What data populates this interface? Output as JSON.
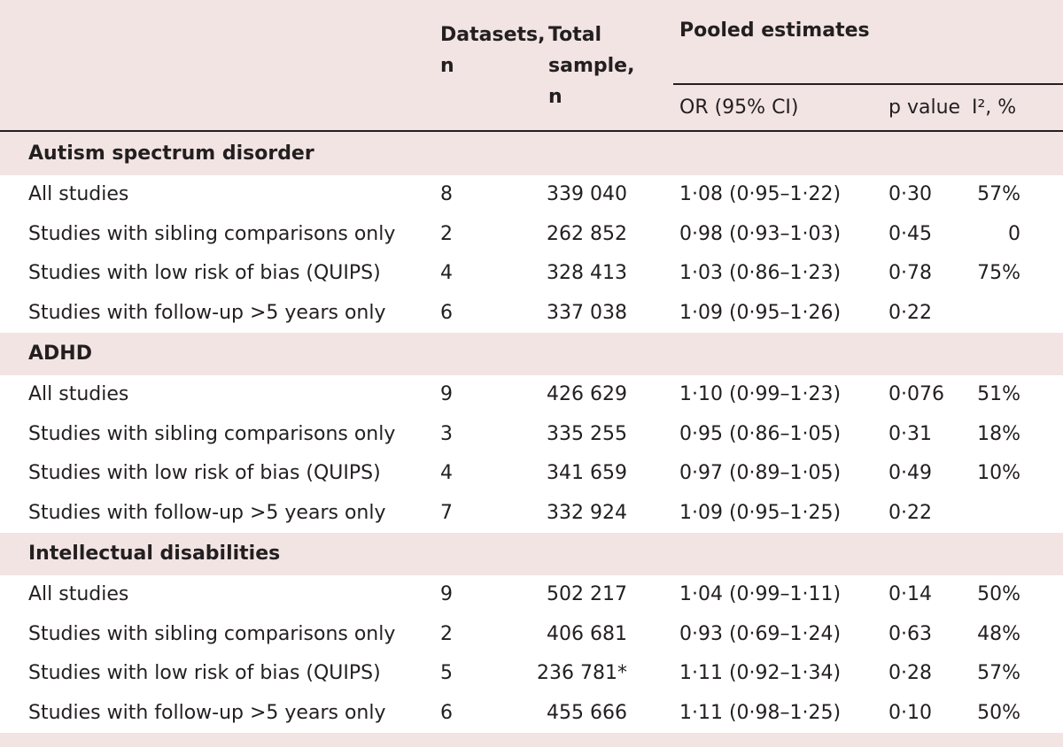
{
  "header": {
    "datasets": "Datasets, n",
    "total": "Total sample, n",
    "pooled": "Pooled estimates",
    "or": "OR (95% CI)",
    "p": "p value",
    "i2": "I², %"
  },
  "sections": [
    {
      "title": "Autism spectrum disorder",
      "rows": [
        {
          "label": "All studies",
          "n": "8",
          "total": "339 040",
          "or": "1·08 (0·95–1·22)",
          "p": "0·30",
          "i2": "57%"
        },
        {
          "label": "Studies with sibling comparisons only",
          "n": "2",
          "total": "262 852",
          "or": "0·98 (0·93–1·03)",
          "p": "0·45",
          "i2": "0"
        },
        {
          "label": "Studies with low risk of bias (QUIPS)",
          "n": "4",
          "total": "328 413",
          "or": "1·03 (0·86–1·23)",
          "p": "0·78",
          "i2": "75%"
        },
        {
          "label": "Studies with follow-up >5 years only",
          "n": "6",
          "total": "337 038",
          "or": "1·09 (0·95–1·26)",
          "p": "0·22"
        }
      ]
    },
    {
      "title": "ADHD",
      "rows": [
        {
          "label": "All studies",
          "n": "9",
          "total": "426 629",
          "or": "1·10 (0·99–1·23)",
          "p": "0·076",
          "i2": "51%"
        },
        {
          "label": "Studies with sibling comparisons only",
          "n": "3",
          "total": "335 255",
          "or": "0·95 (0·86–1·05)",
          "p": "0·31",
          "i2": "18%"
        },
        {
          "label": "Studies with low risk of bias (QUIPS)",
          "n": "4",
          "total": "341 659",
          "or": "0·97 (0·89–1·05)",
          "p": "0·49",
          "i2": "10%"
        },
        {
          "label": "Studies with follow-up >5 years only",
          "n": "7",
          "total": "332 924",
          "or": "1·09 (0·95–1·25)",
          "p": "0·22"
        }
      ]
    },
    {
      "title": "Intellectual disabilities",
      "rows": [
        {
          "label": "All studies",
          "n": "9",
          "total": "502 217",
          "or": "1·04 (0·99–1·11)",
          "p": "0·14",
          "i2": "50%"
        },
        {
          "label": "Studies with sibling comparisons only",
          "n": "2",
          "total": "406 681",
          "or": "0·93 (0·69–1·24)",
          "p": "0·63",
          "i2": "48%"
        },
        {
          "label": "Studies with low risk of bias (QUIPS)",
          "n": "5",
          "total": "236 781*",
          "or": "1·11 (0·92–1·34)",
          "p": "0·28",
          "i2": "57%"
        },
        {
          "label": "Studies with follow-up >5 years only",
          "n": "6",
          "total": "455 666",
          "or": "1·11 (0·98–1·25)",
          "p": "0·10",
          "i2": "50%"
        }
      ]
    }
  ]
}
